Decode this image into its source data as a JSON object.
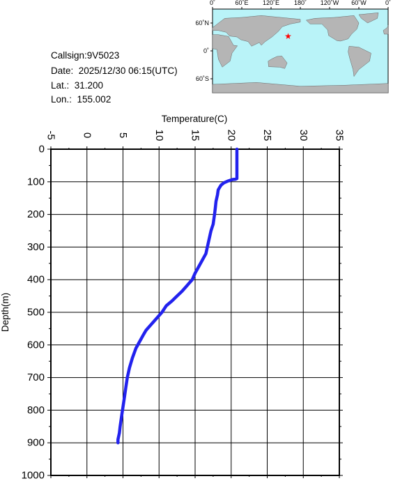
{
  "station": {
    "callsign": "Callsign:9V5023",
    "date": "Date:  2025/12/30 06:15(UTC)",
    "lat": "Lat.:  31.200",
    "lon": "Lon.:  155.002"
  },
  "map": {
    "top_labels": [
      "0˚",
      "60˚E",
      "120˚E",
      "180˚",
      "120˚W",
      "60˚W",
      "0˚"
    ],
    "side_labels": [
      "60˚N",
      "0˚",
      "60˚S"
    ],
    "ocean_color": "#b9f3f8",
    "land_color": "#b5b5b5",
    "marker_color": "#ff0000",
    "marker_icon": "star-icon",
    "marker_lon": 155.002,
    "marker_lat": 31.2
  },
  "chart_data": {
    "type": "line",
    "xlabel": "Temperature(C)",
    "ylabel": "Depth(m)",
    "xlim": [
      -5,
      35
    ],
    "ylim": [
      0,
      1000
    ],
    "x_ticks": [
      "-5",
      "0",
      "5",
      "10",
      "15",
      "20",
      "25",
      "30",
      "35"
    ],
    "y_ticks": [
      "0",
      "100",
      "200",
      "300",
      "400",
      "500",
      "600",
      "700",
      "800",
      "900",
      "1000"
    ],
    "grid": true,
    "line_color": "#2222ee",
    "series": [
      {
        "x": [
          20.8,
          20.8,
          20.8,
          20.7,
          20.6,
          20.2,
          19.9,
          19.5,
          19.0,
          18.6,
          18.4,
          18.2,
          18.1,
          17.9,
          17.8,
          17.7,
          17.5,
          17.2,
          17.0,
          16.8,
          16.5,
          16.0,
          15.5,
          15.0,
          14.6,
          14.2,
          13.8,
          13.2,
          12.5,
          11.8,
          11.0,
          10.4,
          9.6,
          8.8,
          8.2,
          7.8,
          7.3,
          6.8,
          6.3,
          5.9,
          5.6,
          5.4,
          5.2,
          5.0,
          4.8,
          4.6,
          4.5,
          4.4,
          4.3,
          4.3
        ],
        "y": [
          0,
          50,
          90,
          91,
          92,
          93,
          95,
          98,
          103,
          110,
          117,
          125,
          140,
          160,
          180,
          200,
          230,
          250,
          270,
          290,
          320,
          340,
          360,
          380,
          400,
          410,
          420,
          435,
          450,
          465,
          480,
          500,
          520,
          540,
          555,
          570,
          590,
          610,
          640,
          670,
          700,
          730,
          760,
          790,
          820,
          850,
          870,
          880,
          890,
          900
        ]
      }
    ]
  }
}
